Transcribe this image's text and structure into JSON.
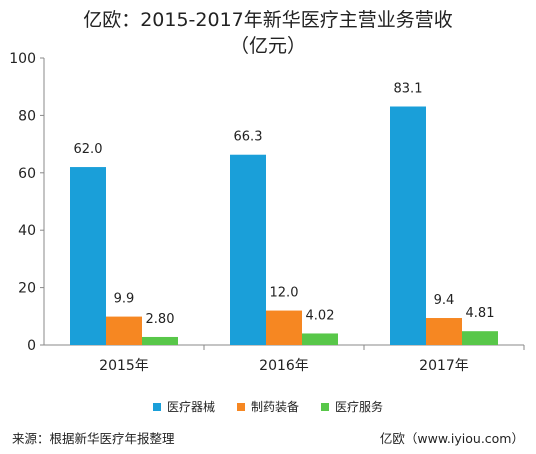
{
  "chart_data": {
    "type": "bar",
    "title": "亿欧：2015-2017年新华医疗主营业务营收",
    "subtitle": "（亿元）",
    "categories": [
      "2015年",
      "2016年",
      "2017年"
    ],
    "series": [
      {
        "name": "医疗器械",
        "values": [
          62.0,
          66.3,
          83.1
        ],
        "labels": [
          "62.0",
          "66.3",
          "83.1"
        ],
        "color": "#1a9fd9"
      },
      {
        "name": "制药装备",
        "values": [
          9.9,
          12.0,
          9.4
        ],
        "labels": [
          "9.9",
          "12.0",
          "9.4"
        ],
        "color": "#f68722"
      },
      {
        "name": "医疗服务",
        "values": [
          2.8,
          4.02,
          4.81
        ],
        "labels": [
          "2.80",
          "4.02",
          "4.81"
        ],
        "color": "#58c749"
      }
    ],
    "ylim": [
      0,
      100
    ],
    "yticks": [
      0,
      20,
      40,
      60,
      80,
      100
    ],
    "xlabel": "",
    "ylabel": "",
    "grid": false,
    "legend_position": "bottom"
  },
  "footer": {
    "source": "来源：根据新华医疗年报整理",
    "credit": "亿欧（www.iyiou.com）"
  }
}
